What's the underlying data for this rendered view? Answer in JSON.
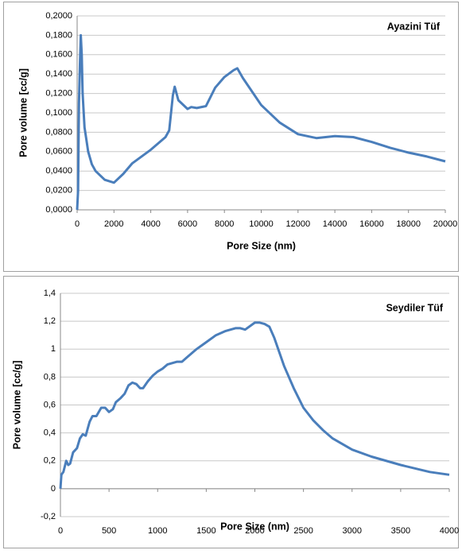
{
  "chart_data": [
    {
      "type": "line",
      "annotation": "Ayazini Tüf",
      "x_label": "Pore Size (nm)",
      "y_label": "Pore  volume [cc/g]",
      "x": [
        0,
        50,
        100,
        150,
        200,
        250,
        300,
        400,
        600,
        800,
        1000,
        1500,
        2000,
        2500,
        3000,
        4000,
        4800,
        5000,
        5200,
        5300,
        5500,
        6000,
        6200,
        6500,
        7000,
        7500,
        8000,
        8500,
        8700,
        9000,
        10000,
        11000,
        12000,
        13000,
        14000,
        15000,
        16000,
        17000,
        18000,
        19000,
        20000
      ],
      "series": [
        {
          "color": "#4a7ebb",
          "values": [
            0.0,
            0.02,
            0.11,
            0.15,
            0.18,
            0.16,
            0.12,
            0.085,
            0.06,
            0.047,
            0.04,
            0.031,
            0.028,
            0.037,
            0.048,
            0.062,
            0.075,
            0.082,
            0.118,
            0.127,
            0.113,
            0.104,
            0.106,
            0.105,
            0.107,
            0.126,
            0.137,
            0.144,
            0.146,
            0.136,
            0.108,
            0.09,
            0.078,
            0.074,
            0.076,
            0.075,
            0.07,
            0.064,
            0.059,
            0.055,
            0.05
          ]
        }
      ],
      "xlim": [
        0,
        20000
      ],
      "xticks": [
        0,
        2000,
        4000,
        6000,
        8000,
        10000,
        12000,
        14000,
        16000,
        18000,
        20000
      ],
      "ylim": [
        0,
        0.2
      ],
      "yticks": [
        {
          "value": 0,
          "label": "0,0000"
        },
        {
          "value": 0.02,
          "label": "0,0200"
        },
        {
          "value": 0.04,
          "label": "0,0400"
        },
        {
          "value": 0.06,
          "label": "0,0600"
        },
        {
          "value": 0.08,
          "label": "0,0800"
        },
        {
          "value": 0.1,
          "label": "0,1000"
        },
        {
          "value": 0.12,
          "label": "0,1200"
        },
        {
          "value": 0.14,
          "label": "0,1400"
        },
        {
          "value": 0.16,
          "label": "0,1600"
        },
        {
          "value": 0.18,
          "label": "0,1800"
        },
        {
          "value": 0.2,
          "label": "0,2000"
        }
      ],
      "grid": true
    },
    {
      "type": "line",
      "annotation": "Seydiler Tüf",
      "x_label": "Pore Size (nm)",
      "y_label": "Pore  volume [cc/g]",
      "x": [
        0,
        10,
        30,
        60,
        80,
        100,
        130,
        170,
        200,
        230,
        260,
        300,
        330,
        370,
        420,
        460,
        500,
        540,
        570,
        620,
        660,
        700,
        740,
        780,
        820,
        850,
        900,
        950,
        1000,
        1050,
        1100,
        1150,
        1200,
        1250,
        1300,
        1400,
        1500,
        1600,
        1700,
        1800,
        1850,
        1900,
        2000,
        2050,
        2100,
        2150,
        2200,
        2300,
        2400,
        2500,
        2600,
        2700,
        2800,
        3000,
        3200,
        3500,
        3800,
        4000
      ],
      "series": [
        {
          "color": "#4a7ebb",
          "values": [
            0,
            0.1,
            0.12,
            0.2,
            0.17,
            0.18,
            0.26,
            0.29,
            0.36,
            0.39,
            0.38,
            0.48,
            0.52,
            0.52,
            0.58,
            0.58,
            0.55,
            0.57,
            0.62,
            0.65,
            0.68,
            0.74,
            0.76,
            0.75,
            0.72,
            0.72,
            0.77,
            0.81,
            0.84,
            0.86,
            0.89,
            0.9,
            0.91,
            0.91,
            0.94,
            1.0,
            1.05,
            1.1,
            1.13,
            1.15,
            1.15,
            1.14,
            1.19,
            1.19,
            1.18,
            1.16,
            1.08,
            0.88,
            0.72,
            0.58,
            0.49,
            0.42,
            0.36,
            0.28,
            0.23,
            0.17,
            0.12,
            0.1
          ]
        }
      ],
      "xlim": [
        0,
        4000
      ],
      "xticks": [
        0,
        500,
        1000,
        1500,
        2000,
        2500,
        3000,
        3500,
        4000
      ],
      "ylim": [
        -0.2,
        1.4
      ],
      "yticks": [
        {
          "value": -0.2,
          "label": "-0,2"
        },
        0,
        {
          "value": 0.2,
          "label": "0,2"
        },
        {
          "value": 0.4,
          "label": "0,4"
        },
        {
          "value": 0.6,
          "label": "0,6"
        },
        {
          "value": 0.8,
          "label": "0,8"
        },
        1,
        {
          "value": 1.2,
          "label": "1,2"
        },
        {
          "value": 1.4,
          "label": "1,4"
        }
      ],
      "grid": true
    }
  ]
}
